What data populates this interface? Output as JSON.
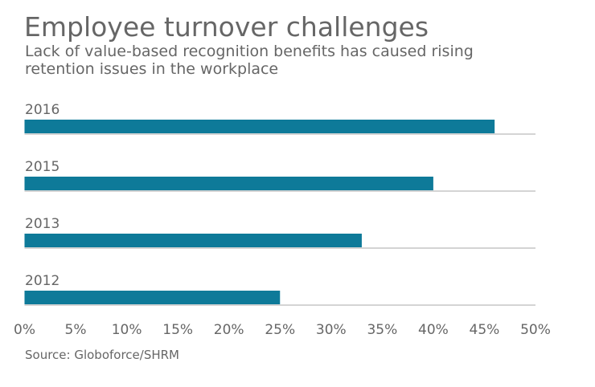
{
  "chart_data": {
    "type": "bar",
    "orientation": "horizontal",
    "title": "Employee turnover challenges",
    "subtitle": "Lack of value-based recognition benefits has caused rising retention issues in the workplace",
    "categories": [
      "2016",
      "2015",
      "2013",
      "2012"
    ],
    "values": [
      46,
      40,
      33,
      25
    ],
    "xlim": [
      0,
      50
    ],
    "xticks": [
      "0%",
      "5%",
      "10%",
      "15%",
      "20%",
      "25%",
      "30%",
      "35%",
      "40%",
      "45%",
      "50%"
    ],
    "xlabel": "",
    "ylabel": "",
    "grid": false,
    "bar_color": "#0e7a99",
    "source": "Source: Globoforce/SHRM"
  }
}
